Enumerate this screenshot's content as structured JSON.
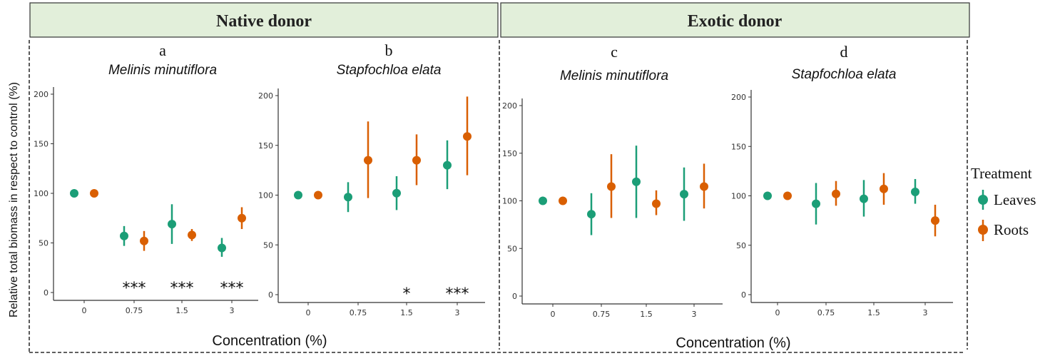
{
  "headers": {
    "native": "Native donor",
    "exotic": "Exotic donor"
  },
  "axes": {
    "ylabel": "Relative total biomass in respect to control (%)",
    "xlabel": "Concentration (%)"
  },
  "legend": {
    "title": "Treatment",
    "items": [
      {
        "label": "Leaves",
        "color": "#1b9e77"
      },
      {
        "label": "Roots",
        "color": "#d95f02"
      }
    ]
  },
  "colors": {
    "leaves": "#1b9e77",
    "roots": "#d95f02",
    "header_fill": "#e2efda"
  },
  "chart_data": [
    {
      "type": "scatter",
      "panel": "a",
      "species": "Melinis minutiflora",
      "categories": [
        "0",
        "0.75",
        "1.5",
        "3"
      ],
      "ylim": [
        0,
        200
      ],
      "yticks": [
        0,
        50,
        100,
        150,
        200
      ],
      "series": [
        {
          "name": "Leaves",
          "values": [
            100,
            57,
            69,
            45
          ],
          "lower": [
            100,
            47,
            49,
            36
          ],
          "upper": [
            100,
            67,
            89,
            55
          ]
        },
        {
          "name": "Roots",
          "values": [
            100,
            52,
            58,
            75
          ],
          "lower": [
            100,
            42,
            52,
            64
          ],
          "upper": [
            100,
            62,
            64,
            86
          ]
        }
      ],
      "significance": [
        "",
        "***",
        "***",
        "***"
      ]
    },
    {
      "type": "scatter",
      "panel": "b",
      "species": "Stapfochloa elata",
      "categories": [
        "0",
        "0.75",
        "1.5",
        "3"
      ],
      "ylim": [
        0,
        200
      ],
      "yticks": [
        0,
        50,
        100,
        150,
        200
      ],
      "series": [
        {
          "name": "Leaves",
          "values": [
            100,
            98,
            102,
            130
          ],
          "lower": [
            100,
            83,
            85,
            106
          ],
          "upper": [
            100,
            113,
            119,
            155
          ]
        },
        {
          "name": "Roots",
          "values": [
            100,
            135,
            135,
            159
          ],
          "lower": [
            100,
            97,
            110,
            120
          ],
          "upper": [
            100,
            174,
            161,
            199
          ]
        }
      ],
      "significance": [
        "",
        "",
        "*",
        "***"
      ]
    },
    {
      "type": "scatter",
      "panel": "c",
      "species": "Melinis minutiflora",
      "categories": [
        "0",
        "0.75",
        "1.5",
        "3"
      ],
      "ylim": [
        0,
        200
      ],
      "yticks": [
        0,
        50,
        100,
        150,
        200
      ],
      "series": [
        {
          "name": "Leaves",
          "values": [
            100,
            86,
            120,
            107
          ],
          "lower": [
            100,
            64,
            82,
            79
          ],
          "upper": [
            100,
            108,
            158,
            135
          ]
        },
        {
          "name": "Roots",
          "values": [
            100,
            115,
            97,
            115
          ],
          "lower": [
            100,
            82,
            85,
            92
          ],
          "upper": [
            100,
            149,
            111,
            139
          ]
        }
      ],
      "significance": [
        "",
        "",
        "",
        ""
      ]
    },
    {
      "type": "scatter",
      "panel": "d",
      "species": "Stapfochloa elata",
      "categories": [
        "0",
        "0.75",
        "1.5",
        "3"
      ],
      "ylim": [
        0,
        200
      ],
      "yticks": [
        0,
        50,
        100,
        150,
        200
      ],
      "series": [
        {
          "name": "Leaves",
          "values": [
            100,
            92,
            97,
            104
          ],
          "lower": [
            100,
            71,
            79,
            92
          ],
          "upper": [
            100,
            113,
            116,
            117
          ]
        },
        {
          "name": "Roots",
          "values": [
            100,
            102,
            107,
            75
          ],
          "lower": [
            100,
            90,
            91,
            59
          ],
          "upper": [
            100,
            115,
            123,
            91
          ]
        }
      ],
      "significance": [
        "",
        "",
        "",
        ""
      ]
    }
  ]
}
